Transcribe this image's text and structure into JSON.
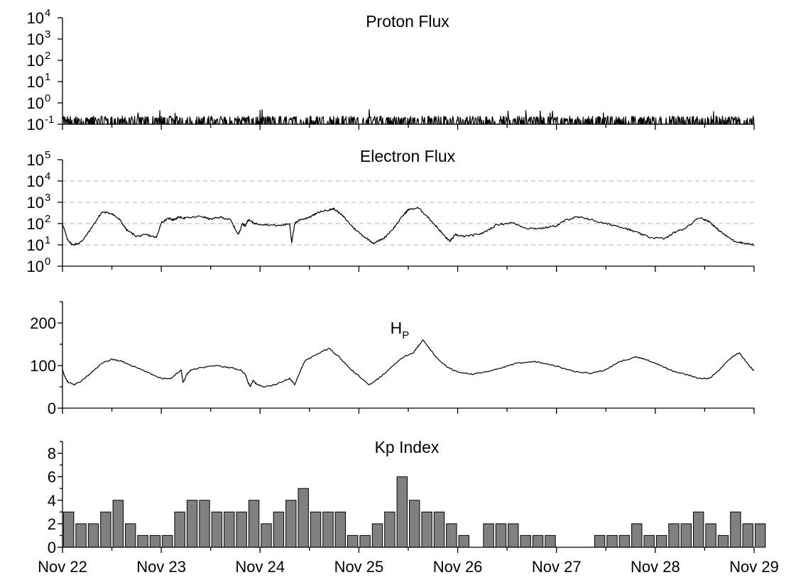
{
  "chart_data": [
    {
      "type": "line",
      "title": "Proton Flux",
      "scale": "log",
      "ylim_exp": [
        -1,
        4
      ],
      "y_ticks": [
        {
          "base": "10",
          "exp": "-1"
        },
        {
          "base": "10",
          "exp": "0"
        },
        {
          "base": "10",
          "exp": "1"
        },
        {
          "base": "10",
          "exp": "2"
        },
        {
          "base": "10",
          "exp": "3"
        },
        {
          "base": "10",
          "exp": "4"
        }
      ],
      "grid": false,
      "x_range_days": [
        0,
        7
      ],
      "noise_band": {
        "baseline": 0.1,
        "typical_peak": 0.2,
        "max_peak": 0.5
      }
    },
    {
      "type": "line",
      "title": "Electron Flux",
      "scale": "log",
      "ylim_exp": [
        0,
        5
      ],
      "y_ticks": [
        {
          "base": "10",
          "exp": "0"
        },
        {
          "base": "10",
          "exp": "1"
        },
        {
          "base": "10",
          "exp": "2"
        },
        {
          "base": "10",
          "exp": "3"
        },
        {
          "base": "10",
          "exp": "4"
        },
        {
          "base": "10",
          "exp": "5"
        }
      ],
      "grid": true,
      "gridlines_exp": [
        1,
        2,
        3,
        4
      ],
      "x": [
        0.0,
        0.05,
        0.1,
        0.17,
        0.22,
        0.3,
        0.4,
        0.5,
        0.58,
        0.65,
        0.75,
        0.85,
        0.95,
        1.0,
        1.08,
        1.12,
        1.18,
        1.25,
        1.4,
        1.5,
        1.6,
        1.7,
        1.78,
        1.82,
        1.85,
        1.88,
        1.95,
        2.05,
        2.2,
        2.3,
        2.32,
        2.35,
        2.4,
        2.5,
        2.6,
        2.7,
        2.75,
        2.85,
        2.95,
        3.05,
        3.15,
        3.25,
        3.35,
        3.45,
        3.5,
        3.6,
        3.7,
        3.8,
        3.88,
        3.92,
        3.98,
        4.05,
        4.15,
        4.25,
        4.4,
        4.55,
        4.7,
        4.85,
        5.0,
        5.1,
        5.2,
        5.3,
        5.45,
        5.6,
        5.7,
        5.8,
        5.95,
        6.1,
        6.2,
        6.3,
        6.45,
        6.55,
        6.62,
        6.7,
        6.8,
        6.9,
        7.0
      ],
      "values": [
        100,
        18,
        10,
        12,
        20,
        70,
        350,
        300,
        150,
        50,
        25,
        30,
        22,
        110,
        180,
        150,
        200,
        180,
        220,
        160,
        200,
        150,
        30,
        100,
        80,
        150,
        100,
        90,
        80,
        100,
        12,
        100,
        150,
        200,
        350,
        450,
        500,
        200,
        60,
        25,
        12,
        20,
        60,
        250,
        450,
        550,
        200,
        60,
        22,
        15,
        30,
        25,
        28,
        35,
        90,
        110,
        60,
        60,
        80,
        150,
        200,
        180,
        110,
        80,
        60,
        40,
        22,
        20,
        40,
        60,
        200,
        120,
        60,
        30,
        15,
        12,
        10
      ]
    },
    {
      "type": "line",
      "title": "H",
      "title_sub": "P",
      "scale": "linear",
      "ylim": [
        0,
        250
      ],
      "y_ticks": [
        0,
        100,
        200
      ],
      "grid": false,
      "x": [
        0.0,
        0.03,
        0.06,
        0.12,
        0.2,
        0.3,
        0.4,
        0.5,
        0.6,
        0.7,
        0.85,
        1.0,
        1.1,
        1.2,
        1.22,
        1.26,
        1.3,
        1.4,
        1.55,
        1.7,
        1.8,
        1.85,
        1.88,
        1.9,
        1.93,
        1.97,
        2.05,
        2.15,
        2.3,
        2.35,
        2.45,
        2.6,
        2.7,
        2.8,
        2.9,
        3.0,
        3.1,
        3.2,
        3.3,
        3.45,
        3.55,
        3.6,
        3.65,
        3.7,
        3.78,
        3.9,
        4.0,
        4.15,
        4.3,
        4.45,
        4.6,
        4.75,
        4.9,
        5.05,
        5.2,
        5.35,
        5.5,
        5.65,
        5.8,
        5.9,
        6.0,
        6.1,
        6.2,
        6.3,
        6.45,
        6.55,
        6.65,
        6.75,
        6.85,
        6.95,
        7.0
      ],
      "values": [
        90,
        70,
        60,
        55,
        65,
        85,
        105,
        115,
        110,
        100,
        85,
        70,
        70,
        90,
        60,
        80,
        90,
        95,
        100,
        95,
        90,
        80,
        60,
        50,
        65,
        55,
        50,
        55,
        70,
        55,
        110,
        130,
        140,
        120,
        95,
        75,
        55,
        70,
        90,
        120,
        130,
        145,
        160,
        145,
        120,
        95,
        85,
        80,
        85,
        95,
        105,
        110,
        105,
        95,
        85,
        82,
        90,
        110,
        120,
        115,
        105,
        95,
        85,
        80,
        70,
        70,
        90,
        115,
        130,
        100,
        88
      ]
    },
    {
      "type": "bar",
      "title": "Kp Index",
      "scale": "linear",
      "ylim": [
        0,
        9
      ],
      "y_ticks": [
        0,
        2,
        4,
        6,
        8
      ],
      "grid": false,
      "bar_interval_days": 0.125,
      "values": [
        3,
        2,
        2,
        3,
        4,
        2,
        1,
        1,
        1,
        3,
        4,
        4,
        3,
        3,
        3,
        4,
        2,
        3,
        4,
        5,
        3,
        3,
        3,
        1,
        1,
        2,
        3,
        6,
        4,
        3,
        3,
        2,
        1,
        0,
        2,
        2,
        2,
        1,
        1,
        1,
        0,
        0,
        0,
        1,
        1,
        1,
        2,
        1,
        1,
        2,
        2,
        3,
        2,
        1,
        3,
        2,
        2,
        0
      ]
    }
  ],
  "x_axis": {
    "tick_labels": [
      "Nov 22",
      "Nov 23",
      "Nov 24",
      "Nov 25",
      "Nov 26",
      "Nov 27",
      "Nov 28",
      "Nov 29"
    ]
  }
}
